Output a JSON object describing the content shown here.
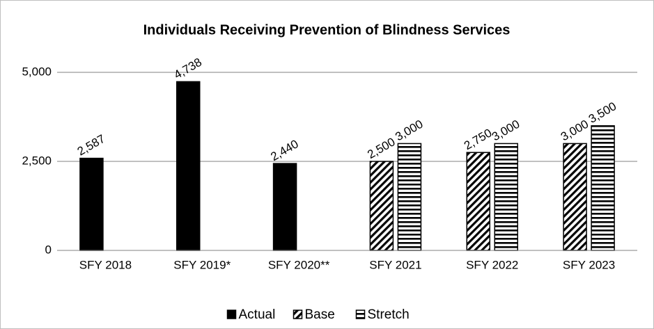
{
  "chart_data": {
    "type": "bar",
    "title": "Individuals Receiving Prevention of Blindness Services",
    "categories": [
      "SFY 2018",
      "SFY 2019*",
      "SFY 2020**",
      "SFY 2021",
      "SFY 2022",
      "SFY 2023"
    ],
    "series": [
      {
        "name": "Actual",
        "color": "#000000",
        "pattern": "solid",
        "values": [
          2587,
          4738,
          2440,
          null,
          null,
          null
        ],
        "value_labels": [
          "2,587",
          "4,738",
          "2,440",
          null,
          null,
          null
        ]
      },
      {
        "name": "Base",
        "color": "#000000",
        "pattern": "diagonal",
        "values": [
          null,
          null,
          null,
          2500,
          2750,
          3000
        ],
        "value_labels": [
          null,
          null,
          null,
          "2,500",
          "2,750",
          "3,000"
        ]
      },
      {
        "name": "Stretch",
        "color": "#000000",
        "pattern": "horizontal",
        "values": [
          null,
          null,
          null,
          3000,
          3000,
          3500
        ],
        "value_labels": [
          null,
          null,
          null,
          "3,000",
          "3,000",
          "3,500"
        ]
      }
    ],
    "ylim": [
      0,
      5000
    ],
    "yticks": [
      0,
      {
        "value": 2500,
        "label": "2,500"
      },
      {
        "value": 5000,
        "label": "5,000"
      }
    ],
    "grid": true,
    "legend": "bottom"
  }
}
